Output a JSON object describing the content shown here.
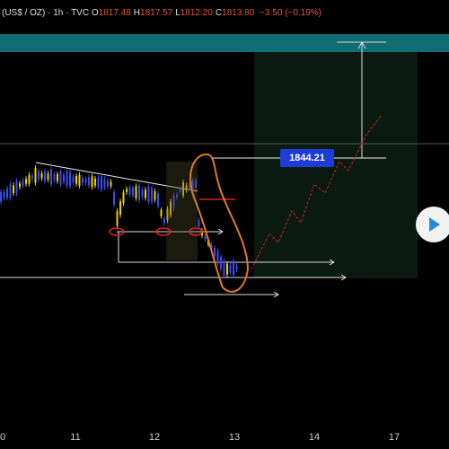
{
  "header": {
    "symbol": "(US$ / OZ)",
    "interval": "1h",
    "source": "TVC",
    "ohlc": [
      {
        "key": "O",
        "value": "1817.48"
      },
      {
        "key": "H",
        "value": "1817.57"
      },
      {
        "key": "L",
        "value": "1812.20"
      },
      {
        "key": "C",
        "value": "1813.80"
      }
    ],
    "change": "−3.50 (−0.19%)"
  },
  "target_label": "1844.21",
  "x_axis_labels": [
    "0",
    "11",
    "12",
    "13",
    "14",
    "17"
  ]
}
